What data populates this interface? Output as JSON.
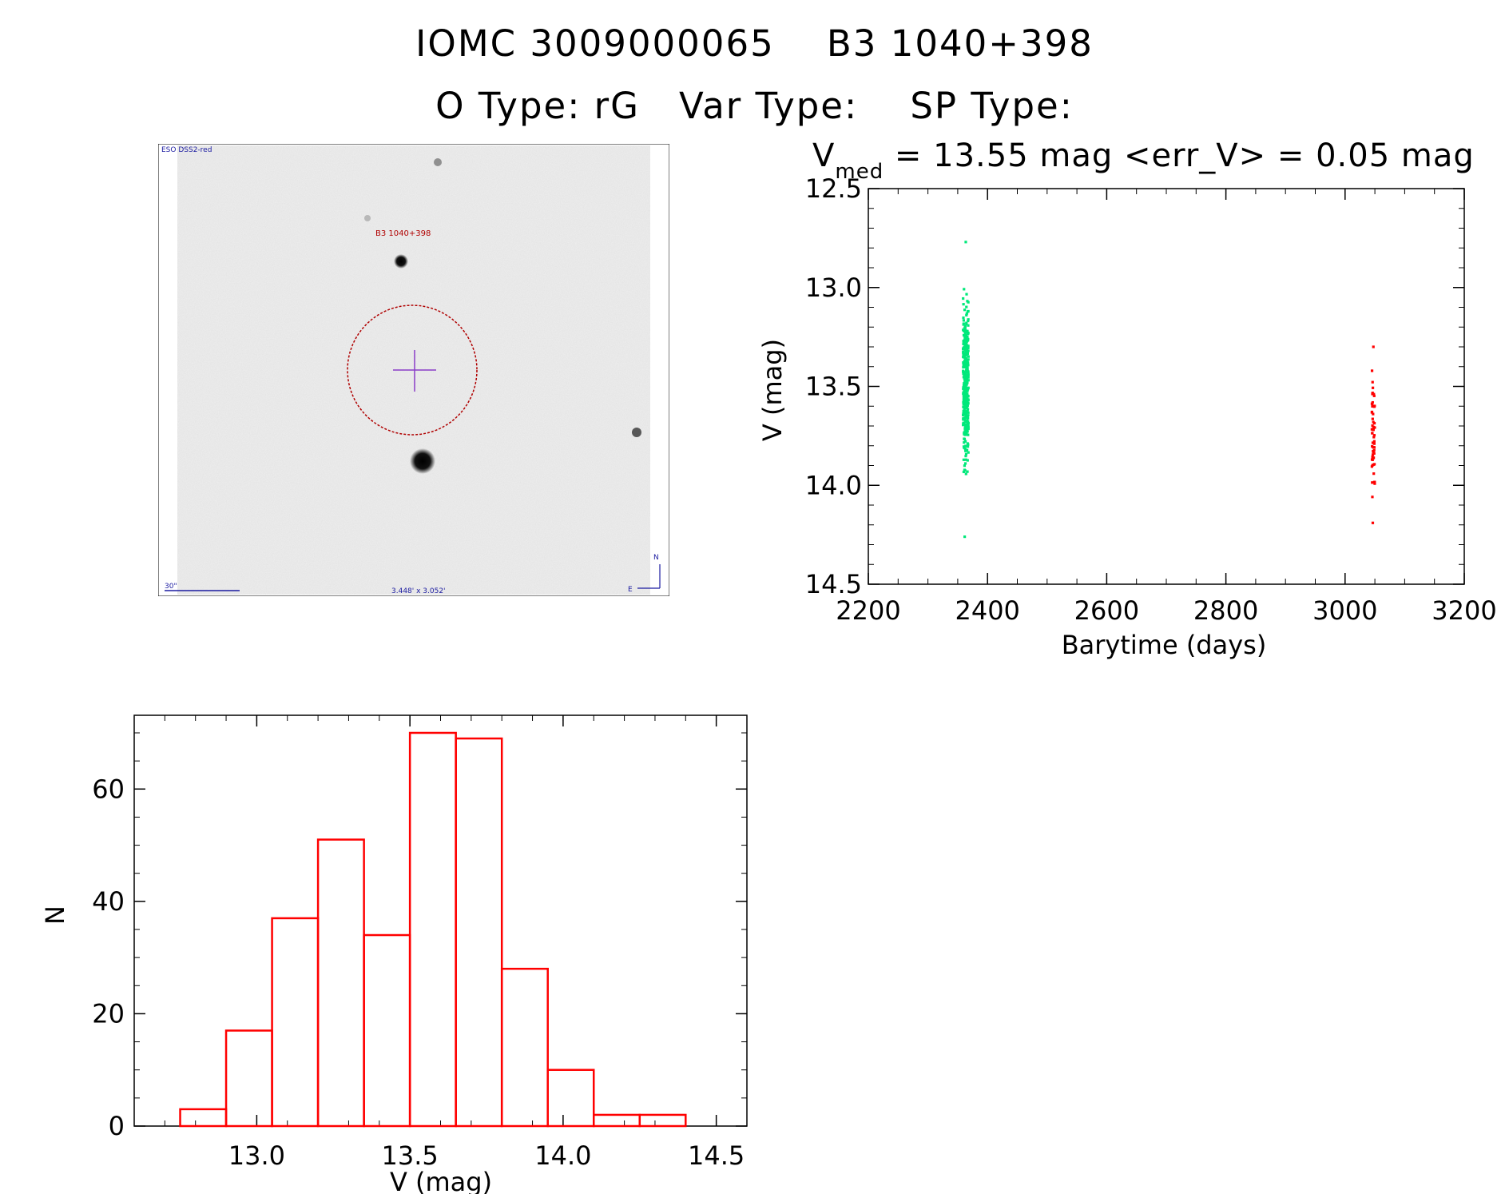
{
  "header": {
    "line1": "IOMC 3009000065    B3 1040+398",
    "line2": "O Type: rG   Var Type:    SP Type:"
  },
  "finder_chart": {
    "survey_label": "ESO DSS2-red",
    "target_label": "B3 1040+398",
    "scale_label": "30\"",
    "size_label": "3.448' x 3.052'",
    "compass_n": "N",
    "compass_e": "E"
  },
  "chart_data": [
    {
      "type": "scatter",
      "title_main": "V",
      "title_sub": "med",
      "title_rest": " = 13.55 mag <err_V> = 0.05 mag",
      "xlabel": "Barytime (days)",
      "ylabel": "V (mag)",
      "xlim": [
        2200,
        3200
      ],
      "ylim": [
        14.5,
        12.5
      ],
      "xticks": [
        "2200",
        "2400",
        "2600",
        "2800",
        "3000",
        "3200"
      ],
      "yticks": [
        "12.5",
        "13.0",
        "13.5",
        "14.0",
        "14.5"
      ],
      "series": [
        {
          "color": "#00e87a",
          "x_range": [
            2359,
            2368
          ],
          "y_range": [
            12.77,
            14.26
          ],
          "count": 380
        },
        {
          "color": "#ff0000",
          "x_range": [
            3045,
            3050
          ],
          "y_range": [
            13.3,
            14.19
          ],
          "count": 60
        }
      ]
    },
    {
      "type": "bar",
      "xlabel": "V (mag)",
      "ylabel": "N",
      "xlim": [
        12.6,
        14.6
      ],
      "ylim": [
        0,
        70
      ],
      "xticks": [
        "13.0",
        "13.5",
        "14.0",
        "14.5"
      ],
      "yticks": [
        "0",
        "20",
        "40",
        "60"
      ],
      "bin_edges": [
        12.75,
        12.9,
        13.05,
        13.2,
        13.35,
        13.5,
        13.65,
        13.8,
        13.95,
        14.1,
        14.25,
        14.4
      ],
      "values": [
        3,
        17,
        37,
        51,
        34,
        70,
        69,
        28,
        10,
        2,
        2
      ],
      "color": "#ff0000"
    }
  ],
  "colors": {
    "axis": "#000000",
    "finder_bg": "#eeeeee",
    "finder_marks": "#b00000",
    "crosshair": "#8a3cc8"
  }
}
